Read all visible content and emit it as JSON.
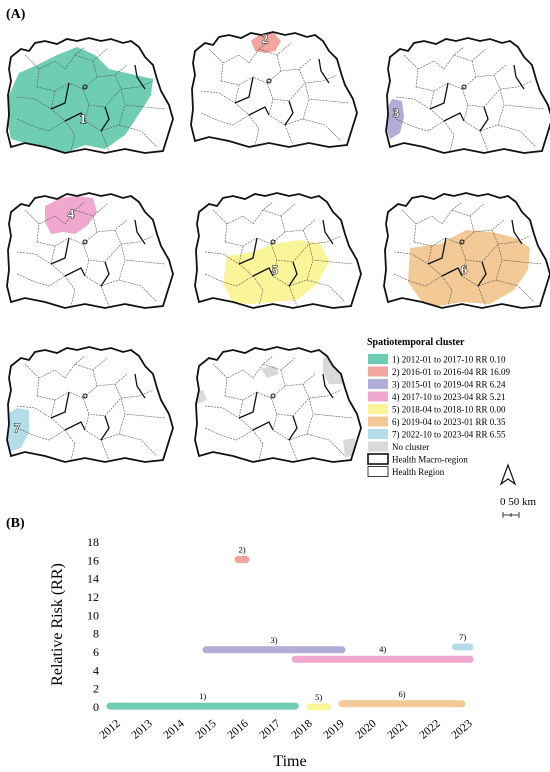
{
  "panels": {
    "a_label": "(A)",
    "b_label": "(B)"
  },
  "colors": {
    "cluster1": "#6fcdb3",
    "cluster2": "#f3a3a0",
    "cluster3": "#b2acd8",
    "cluster4": "#f0a8cf",
    "cluster5": "#fbf59a",
    "cluster6": "#f3c995",
    "cluster7": "#b5dde8",
    "no_cluster": "#d9d9d9",
    "outline": "#111111",
    "region_line": "#555555"
  },
  "maps": [
    {
      "cluster_label": "1",
      "color_key": "cluster1"
    },
    {
      "cluster_label": "2",
      "color_key": "cluster2"
    },
    {
      "cluster_label": "3",
      "color_key": "cluster3"
    },
    {
      "cluster_label": "4",
      "color_key": "cluster4"
    },
    {
      "cluster_label": "5",
      "color_key": "cluster5"
    },
    {
      "cluster_label": "6",
      "color_key": "cluster6"
    },
    {
      "cluster_label": "7",
      "color_key": "cluster7"
    },
    {
      "cluster_label": "",
      "color_key": "no_cluster"
    }
  ],
  "legend": {
    "title": "Spatiotemporal cluster",
    "items": [
      {
        "label": "1) 2012-01 to 2017-10 RR 0.10",
        "color_key": "cluster1"
      },
      {
        "label": "2) 2016-01 to 2016-04 RR 16.09",
        "color_key": "cluster2"
      },
      {
        "label": "3) 2015-01 to 2019-04 RR 6.24",
        "color_key": "cluster3"
      },
      {
        "label": "4) 2017-10 to 2023-04 RR 5.21",
        "color_key": "cluster4"
      },
      {
        "label": "5) 2018-04 to 2018-10 RR 0.00",
        "color_key": "cluster5"
      },
      {
        "label": "6) 2019-04 to 2023-01 RR 0.35",
        "color_key": "cluster6"
      },
      {
        "label": "7) 2022-10 to 2023-04 RR 6.55",
        "color_key": "cluster7"
      },
      {
        "label": "No cluster",
        "color_key": "no_cluster"
      },
      {
        "label": "Health Macro-region",
        "style": "thick-outline"
      },
      {
        "label": "Health Region",
        "style": "thin-outline"
      }
    ]
  },
  "north_arrow": {
    "label": ""
  },
  "scale_bar": {
    "label": "0 50 km"
  },
  "chart_data": {
    "type": "timeline",
    "xlabel": "Time",
    "ylabel": "Relative Risk (RR)",
    "xlim": [
      2011.8,
      2023.4
    ],
    "ylim": [
      0,
      18
    ],
    "x_ticks": [
      2012,
      2013,
      2014,
      2015,
      2016,
      2017,
      2018,
      2019,
      2020,
      2021,
      2022,
      2023
    ],
    "y_ticks": [
      0,
      2,
      4,
      6,
      8,
      10,
      12,
      14,
      16,
      18
    ],
    "grid": false,
    "series": [
      {
        "label": "1)",
        "start": 2012.0,
        "end": 2017.79,
        "rr": 0.1,
        "color_key": "cluster1"
      },
      {
        "label": "2)",
        "start": 2016.0,
        "end": 2016.25,
        "rr": 16.09,
        "color_key": "cluster2"
      },
      {
        "label": "3)",
        "start": 2015.0,
        "end": 2019.25,
        "rr": 6.24,
        "color_key": "cluster3"
      },
      {
        "label": "4)",
        "start": 2017.79,
        "end": 2023.25,
        "rr": 5.21,
        "color_key": "cluster4"
      },
      {
        "label": "5)",
        "start": 2018.25,
        "end": 2018.79,
        "rr": 0.0,
        "color_key": "cluster5"
      },
      {
        "label": "6)",
        "start": 2019.25,
        "end": 2023.0,
        "rr": 0.35,
        "color_key": "cluster6"
      },
      {
        "label": "7)",
        "start": 2022.79,
        "end": 2023.25,
        "rr": 6.55,
        "color_key": "cluster7"
      }
    ]
  }
}
